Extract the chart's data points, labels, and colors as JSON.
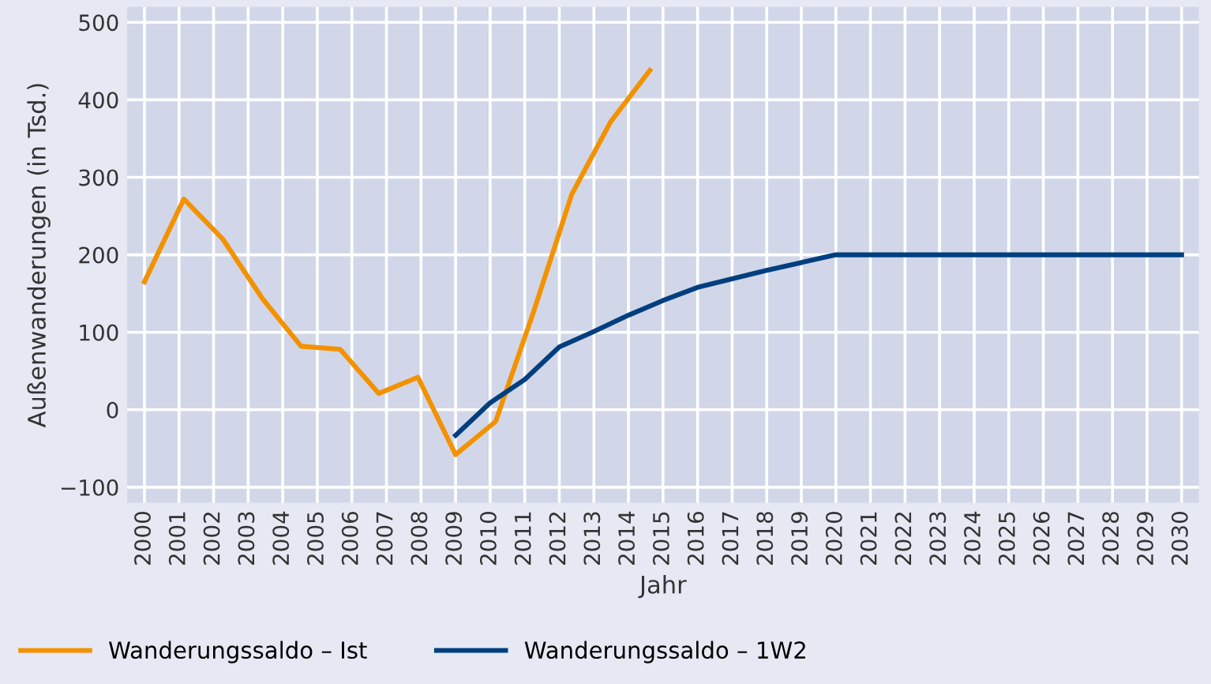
{
  "chart_data": {
    "type": "line",
    "xlabel": "Jahr",
    "ylabel": "Außenwanderungen (in Tsd.)",
    "xlim": [
      1999.5,
      2030.5
    ],
    "ylim": [
      -120,
      520
    ],
    "xticks": [
      2000,
      2001,
      2002,
      2003,
      2004,
      2005,
      2006,
      2007,
      2008,
      2009,
      2010,
      2011,
      2012,
      2013,
      2014,
      2015,
      2016,
      2017,
      2018,
      2019,
      2020,
      2021,
      2022,
      2023,
      2024,
      2025,
      2026,
      2027,
      2028,
      2029,
      2030
    ],
    "yticks": [
      {
        "value": -100,
        "label": "−100"
      },
      0,
      100,
      200,
      300,
      400,
      500
    ],
    "grid": true,
    "legend": "bottom",
    "marker": "none",
    "line_style": "solid",
    "series": [
      {
        "name": "Wanderungssaldo – Ist",
        "color": "#f39200",
        "x": [
          2000,
          2001.14,
          2002.27,
          2003.42,
          2004.53,
          2005.66,
          2006.78,
          2007.91,
          2009,
          2010.16,
          2011.26,
          2012.36,
          2013.49,
          2014.62
        ],
        "values": [
          165,
          272,
          220,
          143,
          82,
          78,
          21,
          42,
          -58,
          -15,
          127,
          278,
          372,
          438
        ]
      },
      {
        "name": "Wanderungssaldo – 1W2",
        "color": "#003f7f",
        "x": [
          2009,
          2010,
          2011,
          2012,
          2013,
          2014,
          2015,
          2016,
          2017,
          2018,
          2019,
          2020,
          2021,
          2022,
          2023,
          2024,
          2025,
          2026,
          2027,
          2028,
          2029,
          2030
        ],
        "values": [
          -33,
          9,
          39,
          81,
          101,
          122,
          141,
          158,
          169,
          180,
          190,
          200,
          200,
          200,
          200,
          200,
          200,
          200,
          200,
          200,
          200,
          200
        ]
      }
    ]
  }
}
